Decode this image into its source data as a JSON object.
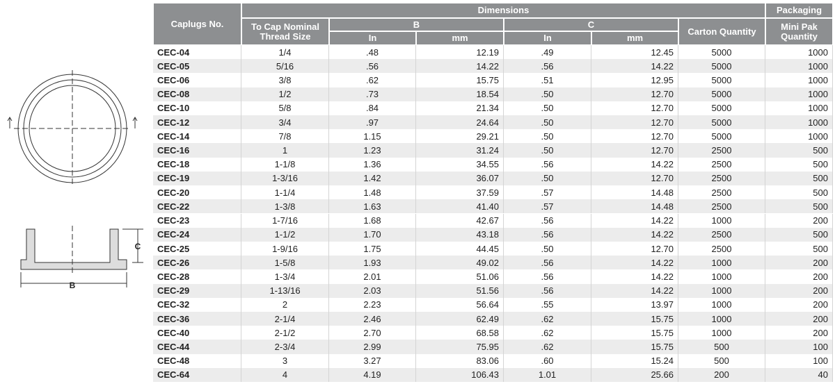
{
  "header": {
    "caplugs_no": "Caplugs No.",
    "dimensions": "Dimensions",
    "packaging": "Packaging",
    "thread_size": "To Cap Nominal Thread Size",
    "b": "B",
    "c": "C",
    "b_in": "In",
    "b_mm": "mm",
    "c_in": "In",
    "c_mm": "mm",
    "carton": "Carton Quantity",
    "mini_pak": "Mini Pak Quantity"
  },
  "table": {
    "rows": [
      [
        "CEC-04",
        "1/4",
        ".48",
        "12.19",
        ".49",
        "12.45",
        "5000",
        "1000"
      ],
      [
        "CEC-05",
        "5/16",
        ".56",
        "14.22",
        ".56",
        "14.22",
        "5000",
        "1000"
      ],
      [
        "CEC-06",
        "3/8",
        ".62",
        "15.75",
        ".51",
        "12.95",
        "5000",
        "1000"
      ],
      [
        "CEC-08",
        "1/2",
        ".73",
        "18.54",
        ".50",
        "12.70",
        "5000",
        "1000"
      ],
      [
        "CEC-10",
        "5/8",
        ".84",
        "21.34",
        ".50",
        "12.70",
        "5000",
        "1000"
      ],
      [
        "CEC-12",
        "3/4",
        ".97",
        "24.64",
        ".50",
        "12.70",
        "5000",
        "1000"
      ],
      [
        "CEC-14",
        "7/8",
        "1.15",
        "29.21",
        ".50",
        "12.70",
        "5000",
        "1000"
      ],
      [
        "CEC-16",
        "1",
        "1.23",
        "31.24",
        ".50",
        "12.70",
        "2500",
        "500"
      ],
      [
        "CEC-18",
        "1-1/8",
        "1.36",
        "34.55",
        ".56",
        "14.22",
        "2500",
        "500"
      ],
      [
        "CEC-19",
        "1-3/16",
        "1.42",
        "36.07",
        ".50",
        "12.70",
        "2500",
        "500"
      ],
      [
        "CEC-20",
        "1-1/4",
        "1.48",
        "37.59",
        ".57",
        "14.48",
        "2500",
        "500"
      ],
      [
        "CEC-22",
        "1-3/8",
        "1.63",
        "41.40",
        ".57",
        "14.48",
        "2500",
        "500"
      ],
      [
        "CEC-23",
        "1-7/16",
        "1.68",
        "42.67",
        ".56",
        "14.22",
        "1000",
        "200"
      ],
      [
        "CEC-24",
        "1-1/2",
        "1.70",
        "43.18",
        ".56",
        "14.22",
        "2500",
        "500"
      ],
      [
        "CEC-25",
        "1-9/16",
        "1.75",
        "44.45",
        ".50",
        "12.70",
        "2500",
        "500"
      ],
      [
        "CEC-26",
        "1-5/8",
        "1.93",
        "49.02",
        ".56",
        "14.22",
        "1000",
        "200"
      ],
      [
        "CEC-28",
        "1-3/4",
        "2.01",
        "51.06",
        ".56",
        "14.22",
        "1000",
        "200"
      ],
      [
        "CEC-29",
        "1-13/16",
        "2.03",
        "51.56",
        ".56",
        "14.22",
        "1000",
        "200"
      ],
      [
        "CEC-32",
        "2",
        "2.23",
        "56.64",
        ".55",
        "13.97",
        "1000",
        "200"
      ],
      [
        "CEC-36",
        "2-1/4",
        "2.46",
        "62.49",
        ".62",
        "15.75",
        "1000",
        "200"
      ],
      [
        "CEC-40",
        "2-1/2",
        "2.70",
        "68.58",
        ".62",
        "15.75",
        "1000",
        "200"
      ],
      [
        "CEC-44",
        "2-3/4",
        "2.99",
        "75.95",
        ".62",
        "15.75",
        "500",
        "100"
      ],
      [
        "CEC-48",
        "3",
        "3.27",
        "83.06",
        ".60",
        "15.24",
        "500",
        "100"
      ],
      [
        "CEC-64",
        "4",
        "4.19",
        "106.43",
        "1.01",
        "25.66",
        "200",
        "40"
      ]
    ]
  },
  "diagram": {
    "labels": [
      "C",
      "B"
    ]
  }
}
